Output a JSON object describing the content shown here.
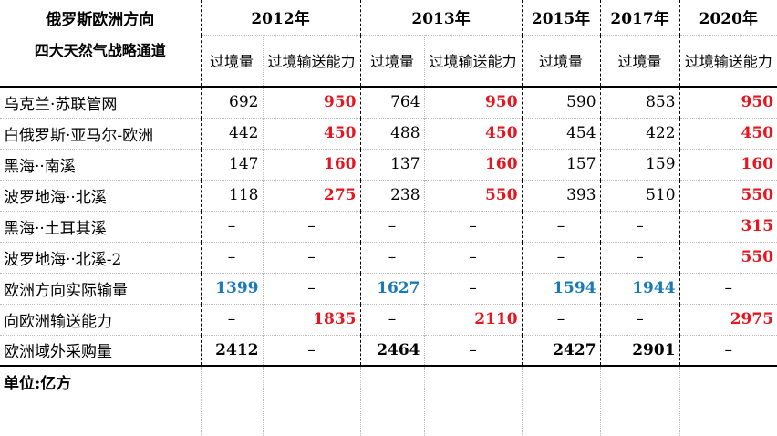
{
  "header": {
    "title": [
      "俄罗斯欧洲方向",
      "四大天然气战略通道"
    ],
    "years": [
      "2012年",
      "2013年",
      "2015年",
      "2017年",
      "2020年"
    ],
    "subheaders": [
      "过境量",
      "过境输送能力",
      "过境量",
      "过境输送能力",
      "过境量",
      "过境量",
      "过境输送能力"
    ]
  },
  "table": {
    "rows": [
      {
        "label": "乌克兰·苏联管网",
        "cells": [
          "692",
          "950",
          "764",
          "950",
          "590",
          "853",
          "950"
        ]
      },
      {
        "label": "白俄罗斯·亚马尔-欧洲",
        "cells": [
          "442",
          "450",
          "488",
          "450",
          "454",
          "422",
          "450"
        ]
      },
      {
        "label": "黑海··南溪",
        "cells": [
          "147",
          "160",
          "137",
          "160",
          "157",
          "159",
          "160"
        ]
      },
      {
        "label": "波罗地海··北溪",
        "cells": [
          "118",
          "275",
          "238",
          "550",
          "393",
          "510",
          "550"
        ]
      },
      {
        "label": "黑海··土耳其溪",
        "cells": [
          "–",
          "–",
          "–",
          "–",
          "–",
          "–",
          "315"
        ]
      },
      {
        "label": "波罗地海··北溪-2",
        "cells": [
          "–",
          "–",
          "–",
          "–",
          "–",
          "–",
          "550"
        ]
      },
      {
        "label": "欧洲方向实际输量",
        "cells": [
          "1399",
          "–",
          "1627",
          "–",
          "1594",
          "1944",
          "–"
        ]
      },
      {
        "label": "向欧洲输送能力",
        "cells": [
          "–",
          "1835",
          "–",
          "2110",
          "–",
          "–",
          "2975"
        ]
      },
      {
        "label": "欧洲域外采购量",
        "cells": [
          "2412",
          "–",
          "2464",
          "–",
          "2427",
          "2901",
          "–"
        ]
      }
    ]
  },
  "footer": {
    "unit": "单位:亿方"
  }
}
